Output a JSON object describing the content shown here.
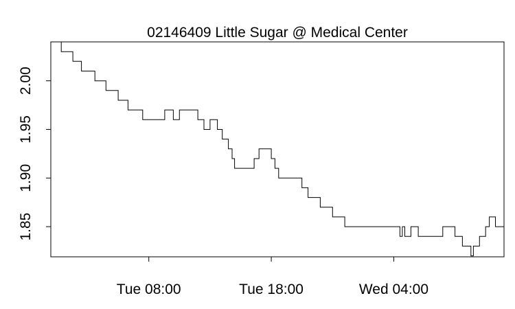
{
  "chart_data": {
    "type": "line",
    "title": "02146409 Little Sugar @ Medical Center",
    "xlabel": "",
    "ylabel": "",
    "x_unit": "hours",
    "xlim": [
      0,
      37
    ],
    "ylim": [
      1.819,
      2.04
    ],
    "x_ticks": [
      {
        "label": "Tue 08:00",
        "x": 8
      },
      {
        "label": "Tue 18:00",
        "x": 18
      },
      {
        "label": "Wed 04:00",
        "x": 28
      }
    ],
    "y_ticks": [
      {
        "label": "1.85",
        "value": 1.85
      },
      {
        "label": "1.90",
        "value": 1.9
      },
      {
        "label": "1.95",
        "value": 1.95
      },
      {
        "label": "2.00",
        "value": 2.0
      }
    ],
    "grid": false,
    "series": [
      {
        "x": [
          0.7,
          0.85,
          1.8,
          2.5,
          3.6,
          4.5,
          5.5,
          6.3,
          7.5,
          8.5,
          9.3,
          10.0,
          10.5,
          11.0,
          12.0,
          12.5,
          13.0,
          13.6,
          14.0,
          14.5,
          14.8,
          15.0,
          15.3,
          15.6,
          16.0,
          16.6,
          17.0,
          17.3,
          17.5,
          18.0,
          18.3,
          18.6,
          19.0,
          20.0,
          20.5,
          21.0,
          22.0,
          23.0,
          24.0,
          25.0,
          26.0,
          27.0,
          28.5,
          28.7,
          28.9,
          29.2,
          29.4,
          29.6,
          30.0,
          30.5,
          31.0,
          32.0,
          33.0,
          33.3,
          33.6,
          34.0,
          34.3,
          34.5,
          34.8,
          35.0,
          35.5,
          35.8,
          36.0,
          36.3,
          37.0
        ],
        "y": [
          2.04,
          2.03,
          2.02,
          2.01,
          2.0,
          1.99,
          1.98,
          1.97,
          1.96,
          1.96,
          1.97,
          1.96,
          1.97,
          1.97,
          1.96,
          1.95,
          1.96,
          1.95,
          1.94,
          1.93,
          1.92,
          1.91,
          1.91,
          1.91,
          1.91,
          1.92,
          1.93,
          1.93,
          1.93,
          1.92,
          1.91,
          1.9,
          1.9,
          1.9,
          1.89,
          1.88,
          1.87,
          1.86,
          1.85,
          1.85,
          1.85,
          1.85,
          1.84,
          1.85,
          1.84,
          1.84,
          1.85,
          1.85,
          1.84,
          1.84,
          1.84,
          1.85,
          1.84,
          1.84,
          1.83,
          1.83,
          1.82,
          1.83,
          1.83,
          1.84,
          1.85,
          1.86,
          1.86,
          1.85,
          1.86
        ]
      }
    ]
  }
}
